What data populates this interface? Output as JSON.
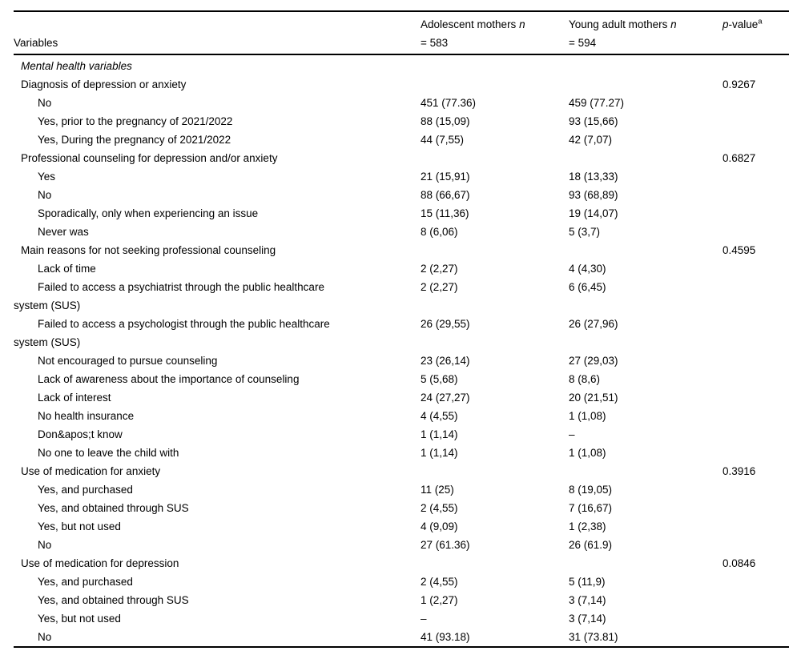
{
  "header": {
    "variables": "Variables",
    "adolescent": {
      "label": "Adolescent mothers",
      "n": "n",
      "count": "= 583"
    },
    "young_adult": {
      "label": "Young adult mothers",
      "n": "n",
      "count": "= 594"
    },
    "pvalue": {
      "p": "p",
      "rest": "-value",
      "sup": "a"
    }
  },
  "rows": [
    {
      "type": "section",
      "label": "Mental health variables",
      "adolescent": "",
      "young_adult": "",
      "p": ""
    },
    {
      "type": "variable",
      "label": "Diagnosis of depression or anxiety",
      "adolescent": "",
      "young_adult": "",
      "p": "0.9267"
    },
    {
      "type": "option",
      "label": "No",
      "adolescent": "451 (77.36)",
      "young_adult": "459 (77.27)",
      "p": ""
    },
    {
      "type": "option",
      "label": "Yes, prior to the pregnancy of 2021/2022",
      "adolescent": "88 (15,09)",
      "young_adult": "93 (15,66)",
      "p": ""
    },
    {
      "type": "option",
      "label": "Yes, During the pregnancy of 2021/2022",
      "adolescent": "44 (7,55)",
      "young_adult": "42 (7,07)",
      "p": ""
    },
    {
      "type": "variable",
      "label": "Professional counseling for depression and/or anxiety",
      "adolescent": "",
      "young_adult": "",
      "p": "0.6827"
    },
    {
      "type": "option",
      "label": "Yes",
      "adolescent": "21 (15,91)",
      "young_adult": "18 (13,33)",
      "p": ""
    },
    {
      "type": "option",
      "label": "No",
      "adolescent": "88 (66,67)",
      "young_adult": "93 (68,89)",
      "p": ""
    },
    {
      "type": "option",
      "label": "Sporadically, only when experiencing an issue",
      "adolescent": "15 (11,36)",
      "young_adult": "19 (14,07)",
      "p": ""
    },
    {
      "type": "option",
      "label": "Never was",
      "adolescent": "8 (6,06)",
      "young_adult": "5 (3,7)",
      "p": ""
    },
    {
      "type": "variable",
      "label": "Main reasons for not seeking professional counseling",
      "adolescent": "",
      "young_adult": "",
      "p": "0.4595"
    },
    {
      "type": "option",
      "label": "Lack of time",
      "adolescent": "2 (2,27)",
      "young_adult": "4 (4,30)",
      "p": ""
    },
    {
      "type": "option",
      "label": "Failed to access a psychiatrist through the public healthcare\nsystem (SUS)",
      "adolescent": "2 (2,27)",
      "young_adult": "6 (6,45)",
      "p": ""
    },
    {
      "type": "option",
      "label": "Failed to access a psychologist through the public healthcare\nsystem (SUS)",
      "adolescent": "26 (29,55)",
      "young_adult": "26 (27,96)",
      "p": ""
    },
    {
      "type": "option",
      "label": "Not encouraged to pursue counseling",
      "adolescent": "23 (26,14)",
      "young_adult": "27 (29,03)",
      "p": ""
    },
    {
      "type": "option",
      "label": "Lack of awareness about the importance of counseling",
      "adolescent": "5 (5,68)",
      "young_adult": "8 (8,6)",
      "p": ""
    },
    {
      "type": "option",
      "label": "Lack of interest",
      "adolescent": "24 (27,27)",
      "young_adult": "20 (21,51)",
      "p": ""
    },
    {
      "type": "option",
      "label": "No health insurance",
      "adolescent": "4 (4,55)",
      "young_adult": "1 (1,08)",
      "p": ""
    },
    {
      "type": "option",
      "label": "Don&apos;t know",
      "adolescent": "1 (1,14)",
      "young_adult": "–",
      "p": ""
    },
    {
      "type": "option",
      "label": "No one to leave the child with",
      "adolescent": "1 (1,14)",
      "young_adult": "1 (1,08)",
      "p": ""
    },
    {
      "type": "variable",
      "label": "Use of medication for anxiety",
      "adolescent": "",
      "young_adult": "",
      "p": "0.3916"
    },
    {
      "type": "option",
      "label": "Yes, and purchased",
      "adolescent": "11 (25)",
      "young_adult": "8 (19,05)",
      "p": ""
    },
    {
      "type": "option",
      "label": "Yes, and obtained through SUS",
      "adolescent": "2 (4,55)",
      "young_adult": "7 (16,67)",
      "p": ""
    },
    {
      "type": "option",
      "label": "Yes, but not used",
      "adolescent": "4 (9,09)",
      "young_adult": "1 (2,38)",
      "p": ""
    },
    {
      "type": "option",
      "label": "No",
      "adolescent": "27 (61.36)",
      "young_adult": "26 (61.9)",
      "p": ""
    },
    {
      "type": "variable",
      "label": "Use of medication for depression",
      "adolescent": "",
      "young_adult": "",
      "p": "0.0846"
    },
    {
      "type": "option",
      "label": "Yes, and purchased",
      "adolescent": "2 (4,55)",
      "young_adult": "5 (11,9)",
      "p": ""
    },
    {
      "type": "option",
      "label": "Yes, and obtained through SUS",
      "adolescent": "1 (2,27)",
      "young_adult": "3 (7,14)",
      "p": ""
    },
    {
      "type": "option",
      "label": "Yes, but not used",
      "adolescent": "–",
      "young_adult": "3 (7,14)",
      "p": ""
    },
    {
      "type": "option",
      "label": "No",
      "adolescent": "41 (93.18)",
      "young_adult": "31 (73.81)",
      "p": ""
    }
  ]
}
